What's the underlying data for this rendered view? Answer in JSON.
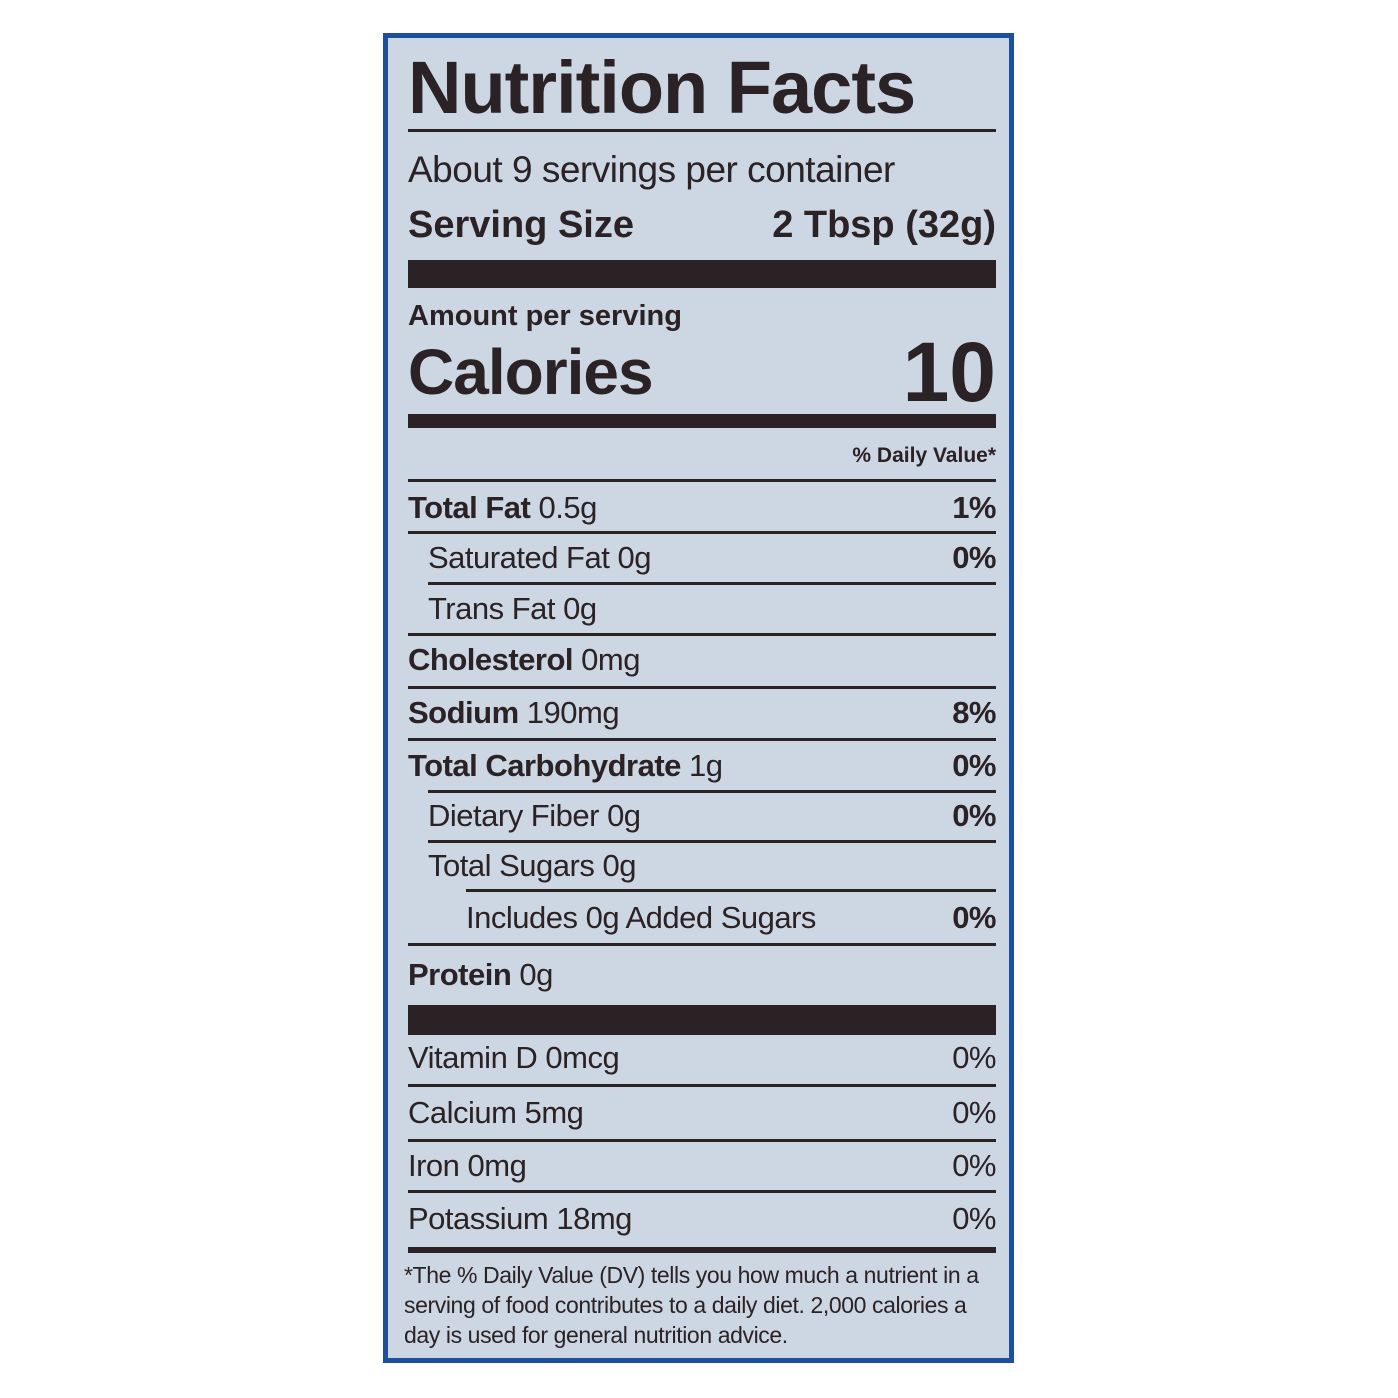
{
  "label": {
    "title": "Nutrition Facts",
    "servings_per_container": "About 9 servings per container",
    "serving_size_label": "Serving Size",
    "serving_size_value": "2 Tbsp (32g)",
    "amount_per_serving": "Amount per serving",
    "calories_label": "Calories",
    "calories_value": "10",
    "daily_value_header": "% Daily Value*",
    "nutrients": [
      {
        "name": "Total Fat",
        "amount": "0.5g",
        "dv": "1%"
      },
      {
        "name": "Saturated Fat",
        "amount": "0g",
        "dv": "0%"
      },
      {
        "name": "Trans Fat",
        "amount": "0g",
        "dv": ""
      },
      {
        "name": "Cholesterol",
        "amount": "0mg",
        "dv": ""
      },
      {
        "name": "Sodium",
        "amount": "190mg",
        "dv": "8%"
      },
      {
        "name": "Total Carbohydrate",
        "amount": "1g",
        "dv": "0%"
      },
      {
        "name": "Dietary Fiber",
        "amount": "0g",
        "dv": "0%"
      },
      {
        "name": "Total Sugars",
        "amount": "0g",
        "dv": ""
      },
      {
        "name": "Includes 0g Added Sugars",
        "amount": "",
        "dv": "0%"
      },
      {
        "name": "Protein",
        "amount": "0g",
        "dv": ""
      }
    ],
    "vitamins": [
      {
        "name": "Vitamin D 0mcg",
        "dv": "0%"
      },
      {
        "name": "Calcium 5mg",
        "dv": "0%"
      },
      {
        "name": "Iron 0mg",
        "dv": "0%"
      },
      {
        "name": "Potassium 18mg",
        "dv": "0%"
      }
    ],
    "footnote": "*The % Daily Value (DV) tells you how much a nutrient in a serving of food contributes to a daily diet. 2,000 calories a day is used for general nutrition advice."
  },
  "colors": {
    "border": "#1c4f9c",
    "background": "#cdd6e3",
    "ink": "#2a2224"
  }
}
